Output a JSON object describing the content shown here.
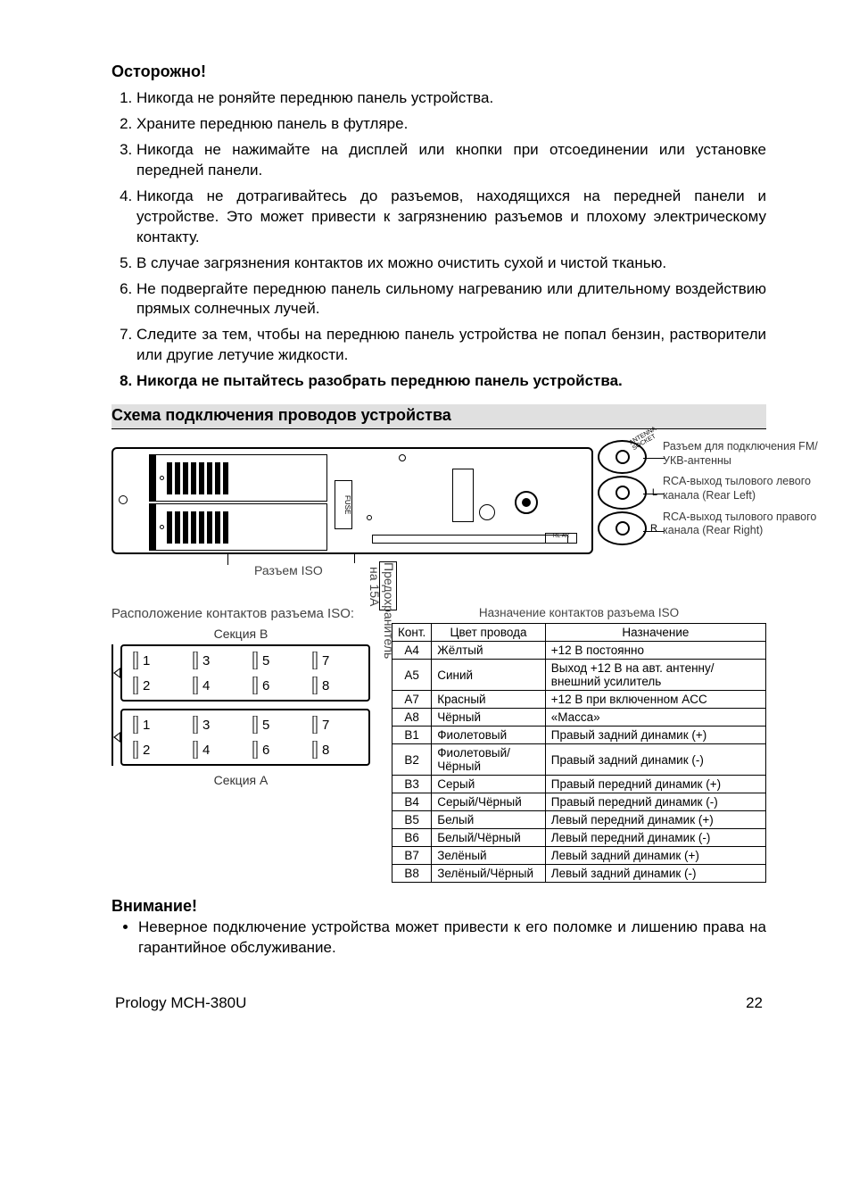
{
  "warning": {
    "title": "Осторожно!",
    "items": [
      "Никогда не роняйте переднюю панель устройства.",
      "Храните переднюю панель в футляре.",
      "Никогда не нажимайте на дисплей или кнопки при отсоединении или установке передней панели.",
      "Никогда не дотрагивайтесь до разъемов, находящихся на передней панели и устройстве. Это может привести к загрязнению разъемов и плохому электрическому контакту.",
      "В случае загрязнения контактов их можно очистить сухой и чистой тканью.",
      "Не подвергайте переднюю панель сильному нагреванию или длительному воздействию прямых солнечных лучей.",
      "Следите за тем, чтобы на переднюю панель устройства не попал бензин, растворители или другие летучие жидкости.",
      "Никогда не пытайтесь разобрать переднюю панель устройства."
    ],
    "bold_item_indices": [
      7
    ]
  },
  "section_title": "Схема подключения проводов устройства",
  "diagram": {
    "fuse_marker": "FUSE",
    "rear_marker": "RE AR",
    "antenna_socket_text": "ANTENNA SOCKET",
    "iso_label": "Разъем ISO",
    "fuse_label": "Предохранитель на 15А",
    "rca_labels": {
      "left": "L",
      "right": "R"
    },
    "callouts": [
      "Разъем для подключения FM/УКВ-антенны",
      "RCA-выход тылового левого канала (Rear Left)",
      "RCA-выход тылового правого канала (Rear Right)"
    ]
  },
  "pins": {
    "heading": "Расположение контактов разъема ISO:",
    "section_b": "Секция B",
    "section_a": "Секция A",
    "numbers_top": [
      "1",
      "3",
      "5",
      "7"
    ],
    "numbers_bottom": [
      "2",
      "4",
      "6",
      "8"
    ]
  },
  "iso_table": {
    "title": "Назначение контактов разъема ISO",
    "columns": [
      "Конт.",
      "Цвет провода",
      "Назначение"
    ],
    "rows": [
      [
        "A4",
        "Жёлтый",
        "+12 В постоянно"
      ],
      [
        "A5",
        "Синий",
        "Выход +12 В на авт. антенну/ внешний усилитель"
      ],
      [
        "A7",
        "Красный",
        "+12 В при включенном ACC"
      ],
      [
        "A8",
        "Чёрный",
        "«Масса»"
      ],
      [
        "B1",
        "Фиолетовый",
        "Правый задний динамик (+)"
      ],
      [
        "B2",
        "Фиолетовый/Чёрный",
        "Правый задний динамик (-)"
      ],
      [
        "B3",
        "Серый",
        "Правый передний динамик (+)"
      ],
      [
        "B4",
        "Серый/Чёрный",
        "Правый передний динамик (-)"
      ],
      [
        "B5",
        "Белый",
        "Левый передний динамик (+)"
      ],
      [
        "B6",
        "Белый/Чёрный",
        "Левый передний динамик (-)"
      ],
      [
        "B7",
        "Зелёный",
        "Левый задний динамик (+)"
      ],
      [
        "B8",
        "Зелёный/Чёрный",
        "Левый задний динамик (-)"
      ]
    ]
  },
  "attention": {
    "title": "Внимание!",
    "items": [
      "Неверное подключение устройства может привести к его поломке и лишению права на гарантийное обслуживание."
    ]
  },
  "footer": {
    "model": "Prology MCH-380U",
    "page": "22"
  },
  "style": {
    "page_bg": "#ffffff",
    "text_color": "#000000",
    "section_bg": "#e0e0e0",
    "muted_color": "#444444",
    "base_fontsize": 17
  }
}
